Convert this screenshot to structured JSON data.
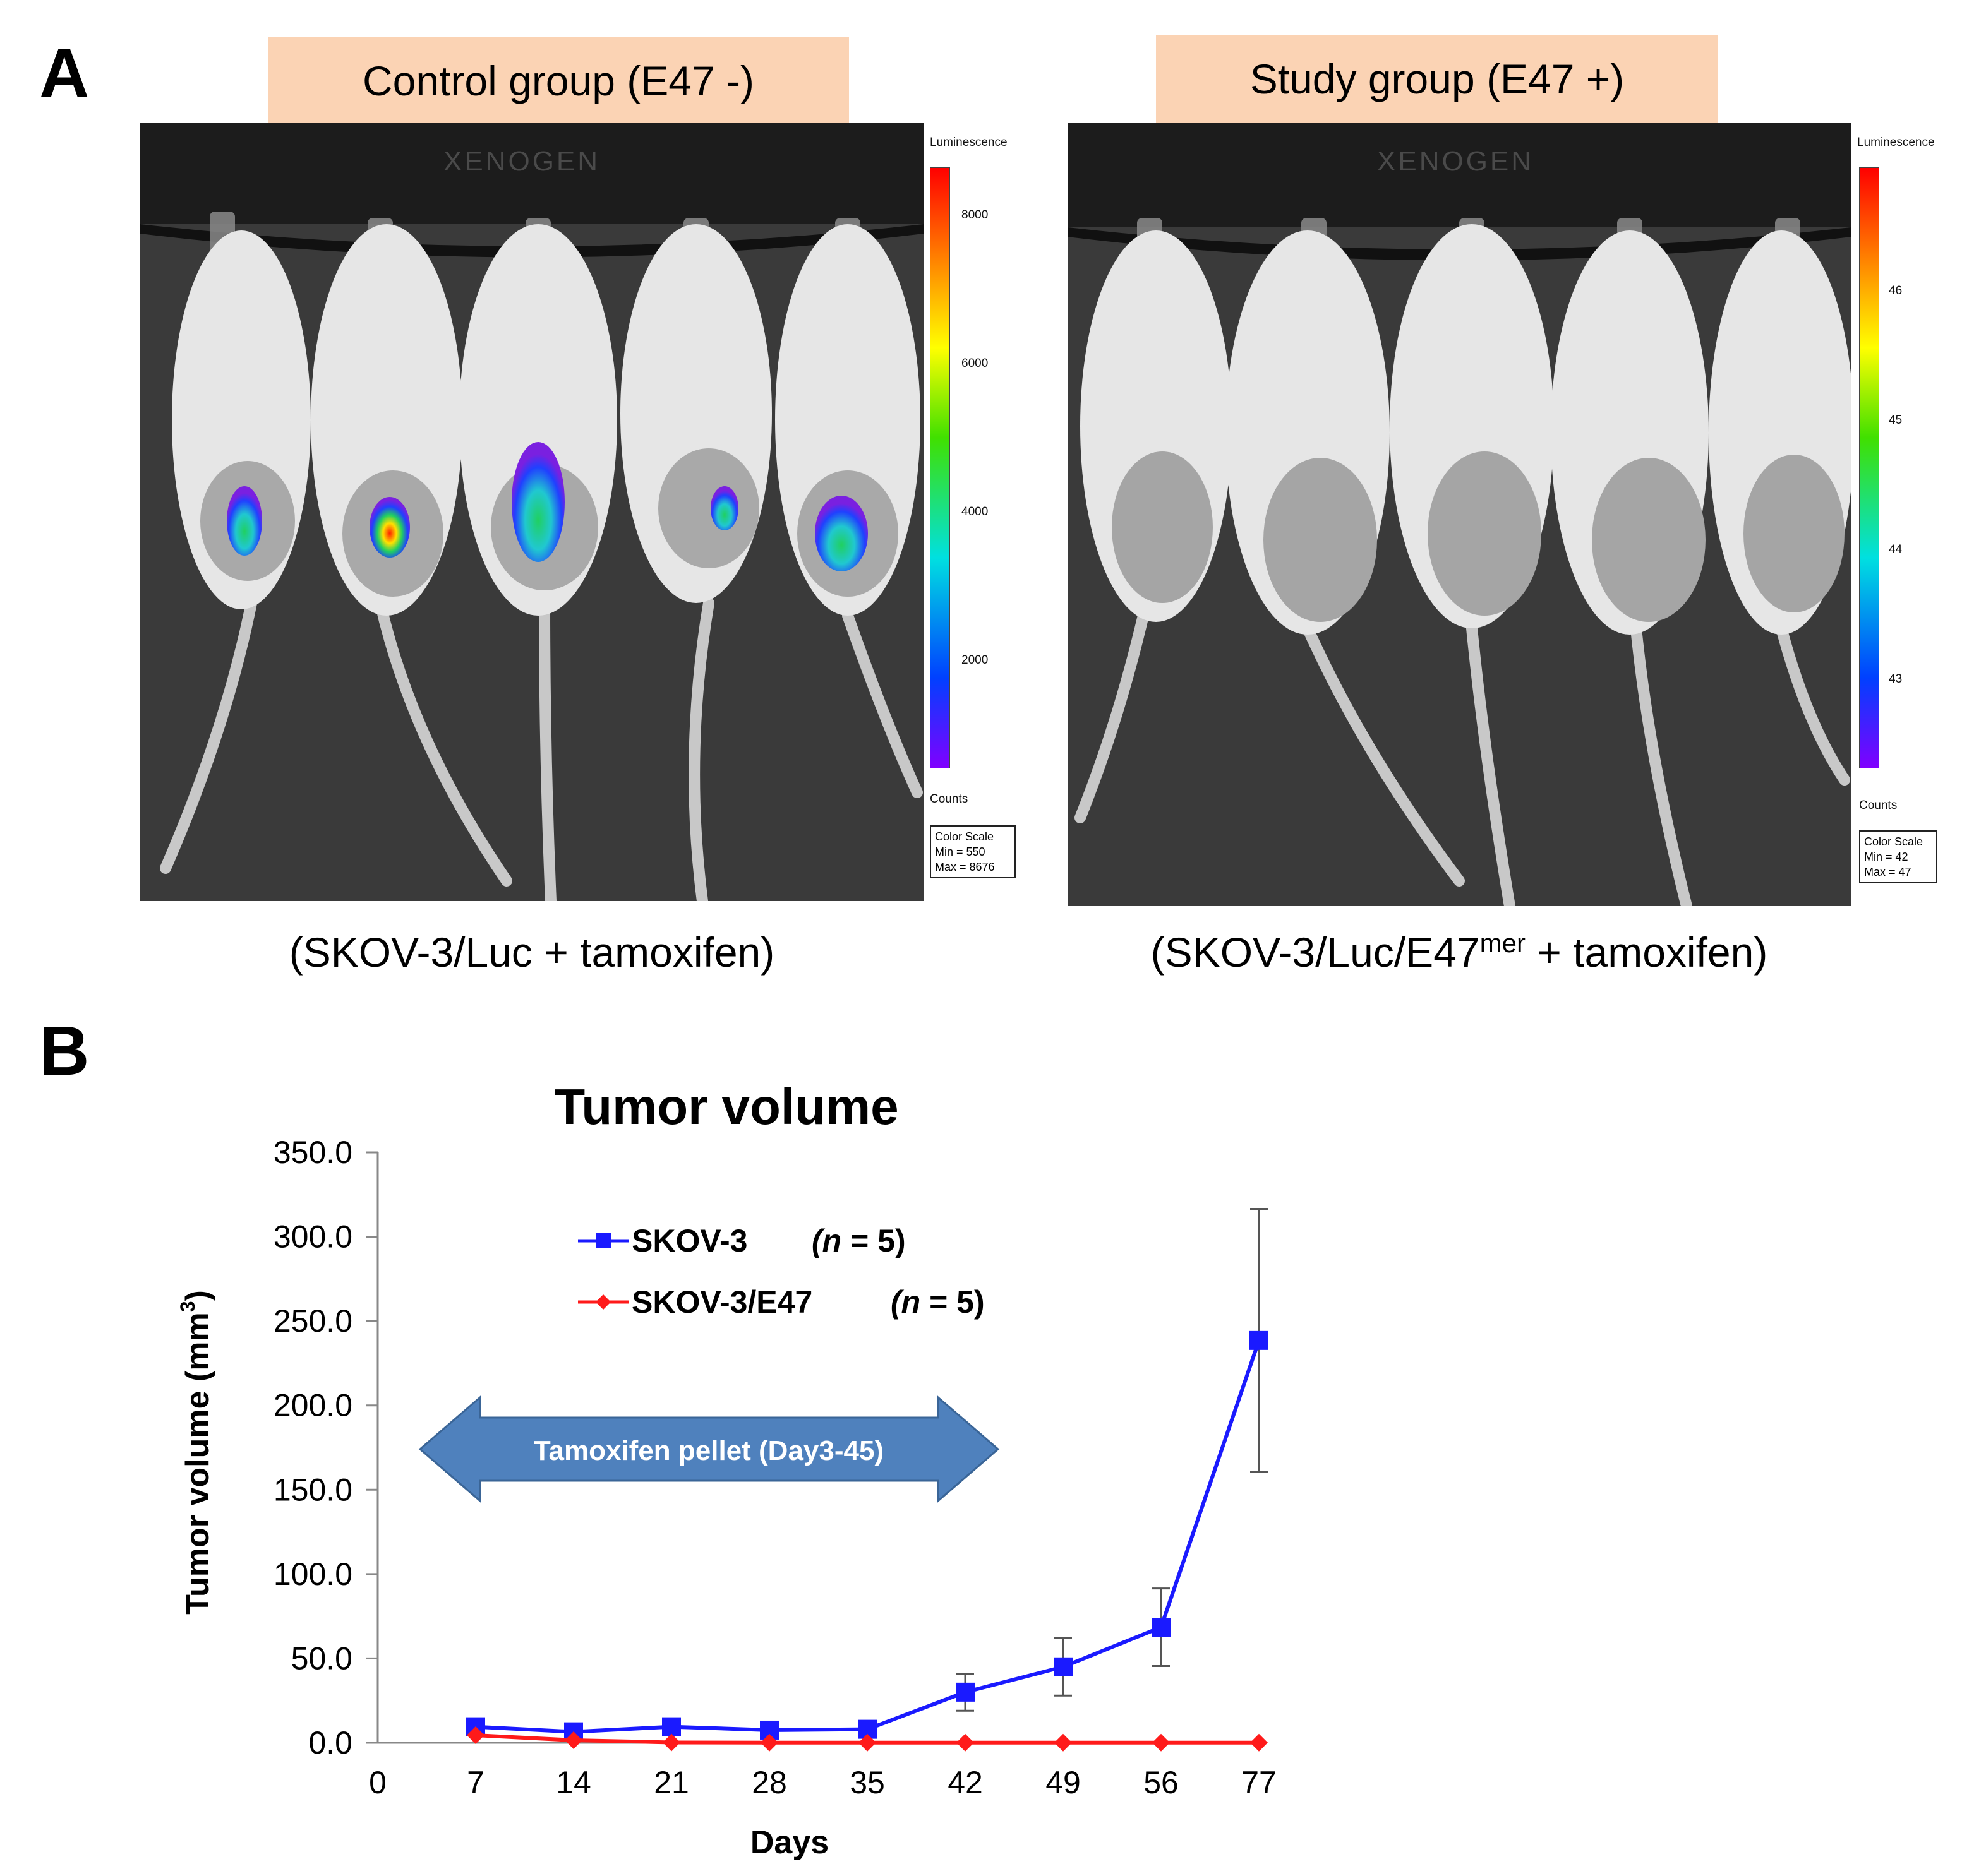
{
  "panel_a": {
    "letter": "A",
    "control": {
      "group_label": "Control group (E47 -)",
      "caption": "(SKOV-3/Luc + tamoxifen)",
      "instrument_text": "XENOGEN",
      "scale": {
        "title": "Luminescence",
        "ticks": [
          "8000",
          "6000",
          "4000",
          "2000"
        ],
        "unit": "Counts",
        "box_title": "Color Scale",
        "min": "Min = 550",
        "max": "Max = 8676"
      }
    },
    "study": {
      "group_label": "Study group (E47 +)",
      "caption_main": "(SKOV-3/Luc/E47",
      "caption_sup": "mer",
      "caption_tail": " + tamoxifen)",
      "instrument_text": "XENOGEN",
      "scale": {
        "title": "Luminescence",
        "ticks": [
          "46",
          "45",
          "44",
          "43"
        ],
        "unit": "Counts",
        "box_title": "Color Scale",
        "min": "Min = 42",
        "max": "Max = 47"
      }
    }
  },
  "panel_b": {
    "letter": "B",
    "annotation": "Tamoxifen pellet (Day3-45)"
  },
  "chart_data": {
    "type": "line",
    "title": "Tumor volume",
    "xlabel": "Days",
    "ylabel": "Tumor volume (mm",
    "ylabel_sup": "3",
    "ylabel_close": ")",
    "categories": [
      "0",
      "7",
      "14",
      "21",
      "28",
      "35",
      "42",
      "49",
      "56",
      "77"
    ],
    "yticks": [
      "0.0",
      "50.0",
      "100.0",
      "150.0",
      "200.0",
      "250.0",
      "300.0",
      "350.0"
    ],
    "ylim": [
      0,
      350
    ],
    "series": [
      {
        "name": "SKOV-3",
        "n_label": "n",
        "n_value": " = 5)",
        "color": "#1a1aff",
        "marker": "square",
        "x": [
          7,
          14,
          21,
          28,
          35,
          42,
          49,
          56,
          77
        ],
        "values": [
          9.5,
          6.5,
          9.5,
          7.5,
          8.0,
          30.0,
          45.0,
          68.5,
          238.5
        ],
        "errors": [
          0,
          0,
          0,
          0,
          0,
          11,
          17,
          23,
          78
        ]
      },
      {
        "name": "SKOV-3/E47",
        "n_label": "n",
        "n_value": " = 5)",
        "color": "#ff1a1a",
        "marker": "diamond",
        "x": [
          7,
          14,
          21,
          28,
          35,
          42,
          49,
          56,
          77
        ],
        "values": [
          4.5,
          1.5,
          0.2,
          0.1,
          0.1,
          0.1,
          0.1,
          0.1,
          0.1
        ],
        "errors": [
          0,
          0,
          0,
          0,
          0,
          0,
          0,
          0,
          0
        ]
      }
    ],
    "arrow_color": "#4f81bd",
    "grid": false,
    "legend_position": "top-left"
  }
}
